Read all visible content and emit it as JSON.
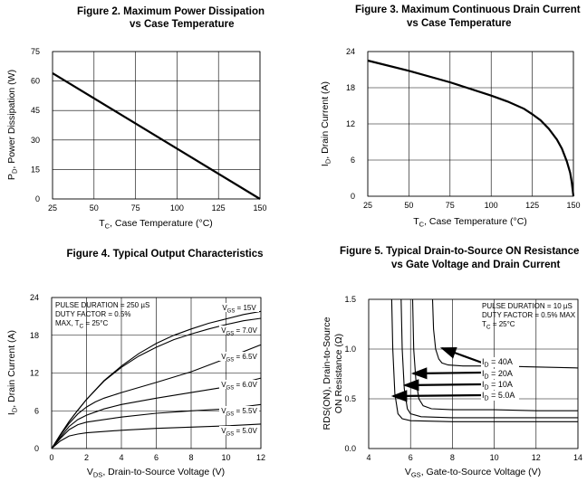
{
  "chart_data": [
    {
      "id": "fig2",
      "type": "line",
      "title_lines": [
        "Figure 2.    Maximum Power Dissipation",
        "vs Case Temperature"
      ],
      "xlabel_prefix": "T",
      "xlabel_sub": "C",
      "xlabel_rest": ", Case Temperature (°C)",
      "ylabel_prefix": "P",
      "ylabel_sub": "D",
      "ylabel_rest": ", Power Dissipation (W)",
      "xlim": [
        25,
        150
      ],
      "ylim": [
        0,
        75
      ],
      "xticks": [
        25,
        50,
        75,
        100,
        125,
        150
      ],
      "yticks": [
        0,
        15,
        30,
        45,
        60,
        75
      ],
      "grid": true,
      "series": [
        {
          "name": "PD",
          "x": [
            25,
            150
          ],
          "y": [
            64,
            0
          ]
        }
      ]
    },
    {
      "id": "fig3",
      "type": "line",
      "title_lines": [
        "Figure 3.    Maximum Continuous Drain Current",
        "vs Case Temperature"
      ],
      "xlabel_prefix": "T",
      "xlabel_sub": "C",
      "xlabel_rest": ", Case Temperature (°C)",
      "ylabel_prefix": "I",
      "ylabel_sub": "D",
      "ylabel_rest": ", Drain Current (A)",
      "xlim": [
        25,
        150
      ],
      "ylim": [
        0,
        24
      ],
      "xticks": [
        25,
        50,
        75,
        100,
        125,
        150
      ],
      "yticks": [
        0,
        6,
        12,
        18,
        24
      ],
      "grid": true,
      "series": [
        {
          "name": "ID",
          "x": [
            25,
            50,
            75,
            100,
            110,
            120,
            125,
            130,
            135,
            140,
            143,
            146,
            148,
            149,
            150
          ],
          "y": [
            22.5,
            20.8,
            18.9,
            16.7,
            15.7,
            14.5,
            13.6,
            12.6,
            11.2,
            9.4,
            7.9,
            5.8,
            3.9,
            2.3,
            0
          ]
        }
      ]
    },
    {
      "id": "fig4",
      "type": "line",
      "title_lines": [
        "Figure 4. Typical Output Characteristics"
      ],
      "xlabel_prefix": "V",
      "xlabel_sub": "DS",
      "xlabel_rest": ", Drain-to-Source Voltage (V)",
      "ylabel_prefix": "I",
      "ylabel_sub": "D",
      "ylabel_rest": ", Drain Current (A)",
      "xlim": [
        0,
        12
      ],
      "ylim": [
        0,
        24
      ],
      "xticks": [
        0,
        2,
        4,
        6,
        8,
        10,
        12
      ],
      "yticks": [
        0,
        6,
        12,
        18,
        24
      ],
      "grid": true,
      "notes": [
        "PULSE DURATION = 250 µS",
        "DUTY FACTOR = 0.5%",
        "MAX, T_C = 25°C"
      ],
      "series": [
        {
          "name_prefix": "V",
          "name_sub": "GS",
          "name_rest": " = 15V",
          "x": [
            0,
            0.5,
            1,
            1.5,
            2,
            3,
            4,
            5,
            6,
            7,
            8,
            9,
            10,
            11,
            12
          ],
          "y": [
            0,
            2.2,
            4.3,
            6.1,
            7.8,
            10.8,
            13.1,
            15.1,
            16.7,
            18.0,
            19.0,
            19.9,
            20.6,
            21.3,
            21.8
          ]
        },
        {
          "name_prefix": "V",
          "name_sub": "GS",
          "name_rest": " = 7.0V",
          "x": [
            0,
            0.5,
            1,
            1.5,
            2,
            3,
            4,
            5,
            6,
            7,
            8,
            9,
            10,
            11,
            12
          ],
          "y": [
            0,
            2.2,
            4.3,
            6.1,
            7.8,
            10.7,
            12.9,
            14.7,
            16.1,
            17.3,
            18.2,
            19.0,
            19.7,
            20.3,
            20.7
          ]
        },
        {
          "name_prefix": "V",
          "name_sub": "GS",
          "name_rest": " = 6.5V",
          "x": [
            0,
            0.5,
            1,
            1.5,
            2,
            2.5,
            3,
            4,
            6,
            8,
            10,
            12
          ],
          "y": [
            0,
            2.1,
            4.0,
            5.5,
            6.6,
            7.4,
            8.0,
            8.9,
            10.5,
            12.2,
            14.3,
            16.5
          ]
        },
        {
          "name_prefix": "V",
          "name_sub": "GS",
          "name_rest": " = 6.0V",
          "x": [
            0,
            0.5,
            1,
            1.5,
            2,
            3,
            4,
            6,
            8,
            10,
            12
          ],
          "y": [
            0,
            1.8,
            3.5,
            4.6,
            5.3,
            6.3,
            7.0,
            8.0,
            8.9,
            9.8,
            11.2
          ]
        },
        {
          "name_prefix": "V",
          "name_sub": "GS",
          "name_rest": " = 5.5V",
          "x": [
            0,
            0.5,
            1,
            1.5,
            2,
            4,
            6,
            8,
            10,
            12
          ],
          "y": [
            0,
            1.6,
            3.0,
            3.8,
            4.2,
            5.0,
            5.6,
            6.0,
            6.3,
            7.0
          ]
        },
        {
          "name_prefix": "V",
          "name_sub": "GS",
          "name_rest": " = 5.0V",
          "x": [
            0,
            0.5,
            1,
            1.5,
            2,
            4,
            6,
            8,
            10,
            12
          ],
          "y": [
            0,
            1.2,
            2.0,
            2.3,
            2.5,
            2.9,
            3.2,
            3.4,
            3.6,
            3.9
          ]
        }
      ]
    },
    {
      "id": "fig5",
      "type": "line",
      "title_lines": [
        "Figure 5.    Typical Drain-to-Source ON Resistance",
        "vs Gate Voltage and Drain Current"
      ],
      "xlabel_prefix": "V",
      "xlabel_sub": "GS",
      "xlabel_rest": ", Gate-to-Source Voltage (V)",
      "ylabel_lines": [
        "RDS(ON), Drain-to-Source",
        "ON Resistance (Ω)"
      ],
      "xlim": [
        4,
        14
      ],
      "ylim": [
        0.0,
        1.5
      ],
      "xticks": [
        4,
        6,
        8,
        10,
        12,
        14
      ],
      "ytick_labels": [
        "0.0",
        "0.5",
        "1.0",
        "1.5"
      ],
      "yticks": [
        0.0,
        0.5,
        1.0,
        1.5
      ],
      "grid": true,
      "notes": [
        "PULSE DURATION = 10 µS",
        "DUTY FACTOR = 0.5% MAX",
        "T_C = 25°C"
      ],
      "series": [
        {
          "name_prefix": "I",
          "name_sub": "D",
          "name_rest": " = 40A",
          "x": [
            7.05,
            7.1,
            7.2,
            7.35,
            7.5,
            7.8,
            8.5,
            10,
            12,
            14
          ],
          "y": [
            1.5,
            1.2,
            1.0,
            0.9,
            0.86,
            0.84,
            0.83,
            0.83,
            0.82,
            0.81
          ]
        },
        {
          "name_prefix": "I",
          "name_sub": "D",
          "name_rest": " = 20A",
          "x": [
            6.1,
            6.15,
            6.25,
            6.4,
            6.6,
            7,
            8,
            10,
            12,
            14
          ],
          "y": [
            1.5,
            1.0,
            0.7,
            0.5,
            0.43,
            0.4,
            0.39,
            0.39,
            0.38,
            0.38
          ]
        },
        {
          "name_prefix": "I",
          "name_sub": "D",
          "name_rest": " = 10A",
          "x": [
            5.55,
            5.6,
            5.7,
            5.85,
            6.0,
            6.5,
            8,
            10,
            12,
            14
          ],
          "y": [
            1.5,
            1.0,
            0.6,
            0.4,
            0.35,
            0.32,
            0.31,
            0.31,
            0.31,
            0.31
          ]
        },
        {
          "name_prefix": "I",
          "name_sub": "D",
          "name_rest": " = 5.0A",
          "x": [
            5.1,
            5.15,
            5.25,
            5.4,
            5.6,
            6,
            8,
            10,
            12,
            14
          ],
          "y": [
            1.5,
            1.0,
            0.55,
            0.35,
            0.3,
            0.28,
            0.27,
            0.27,
            0.27,
            0.27
          ]
        }
      ]
    }
  ]
}
